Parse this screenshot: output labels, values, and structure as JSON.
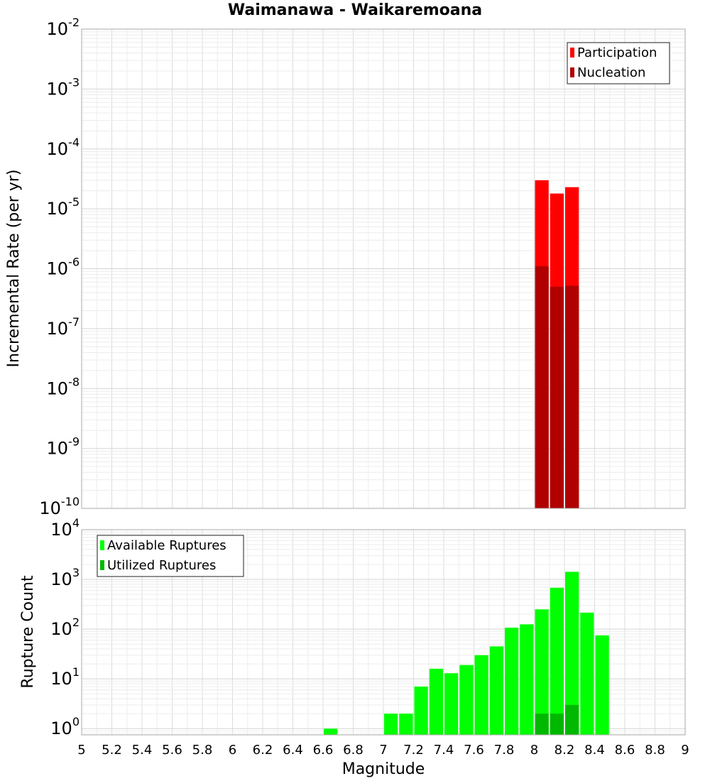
{
  "chart_data": [
    {
      "type": "bar",
      "title": "Waimanawa - Waikaremoana",
      "xlabel": "",
      "ylabel": "Incremental Rate (per yr)",
      "yscale": "log",
      "ylim": [
        1e-10,
        0.01
      ],
      "xlim": [
        5,
        9
      ],
      "bar_width": 0.1,
      "grid": true,
      "legend_position": "top-right",
      "y_ticks": [
        {
          "base": "10",
          "exp": "-10",
          "value": 1e-10
        },
        {
          "base": "10",
          "exp": "-9",
          "value": 1e-09
        },
        {
          "base": "10",
          "exp": "-8",
          "value": 1e-08
        },
        {
          "base": "10",
          "exp": "-7",
          "value": 1e-07
        },
        {
          "base": "10",
          "exp": "-6",
          "value": 1e-06
        },
        {
          "base": "10",
          "exp": "-5",
          "value": 1e-05
        },
        {
          "base": "10",
          "exp": "-4",
          "value": 0.0001
        },
        {
          "base": "10",
          "exp": "-3",
          "value": 0.001
        },
        {
          "base": "10",
          "exp": "-2",
          "value": 0.01
        }
      ],
      "series": [
        {
          "name": "Participation",
          "color": "#ff0000",
          "x": [
            8.05,
            8.15,
            8.25
          ],
          "values": [
            3e-05,
            1.8e-05,
            2.3e-05
          ]
        },
        {
          "name": "Nucleation",
          "color": "#b00000",
          "x": [
            8.05,
            8.15,
            8.25
          ],
          "values": [
            1.1e-06,
            5e-07,
            5.2e-07
          ]
        }
      ]
    },
    {
      "type": "bar",
      "title": "",
      "xlabel": "Magnitude",
      "ylabel": "Rupture Count",
      "yscale": "log",
      "ylim": [
        0.75,
        10000
      ],
      "xlim": [
        5,
        9
      ],
      "bar_width": 0.1,
      "grid": true,
      "legend_position": "top-left",
      "x_tick_labels": [
        "5",
        "5.2",
        "5.4",
        "5.6",
        "5.8",
        "6",
        "6.2",
        "6.4",
        "6.6",
        "6.8",
        "7",
        "7.2",
        "7.4",
        "7.6",
        "7.8",
        "8",
        "8.2",
        "8.4",
        "8.6",
        "8.8",
        "9"
      ],
      "y_ticks": [
        {
          "base": "10",
          "exp": "0",
          "value": 1
        },
        {
          "base": "10",
          "exp": "1",
          "value": 10
        },
        {
          "base": "10",
          "exp": "2",
          "value": 100
        },
        {
          "base": "10",
          "exp": "3",
          "value": 1000
        },
        {
          "base": "10",
          "exp": "4",
          "value": 10000
        }
      ],
      "series": [
        {
          "name": "Available Ruptures",
          "color": "#00ff00",
          "x": [
            6.65,
            7.05,
            7.15,
            7.25,
            7.35,
            7.45,
            7.55,
            7.65,
            7.75,
            7.85,
            7.95,
            8.05,
            8.15,
            8.25,
            8.35,
            8.45
          ],
          "values": [
            1,
            2,
            2,
            7,
            16,
            13,
            19,
            30,
            45,
            107,
            125,
            250,
            680,
            1420,
            215,
            75
          ]
        },
        {
          "name": "Utilized Ruptures",
          "color": "#00b800",
          "x": [
            8.05,
            8.15,
            8.25
          ],
          "values": [
            2,
            2,
            3
          ]
        }
      ]
    }
  ]
}
